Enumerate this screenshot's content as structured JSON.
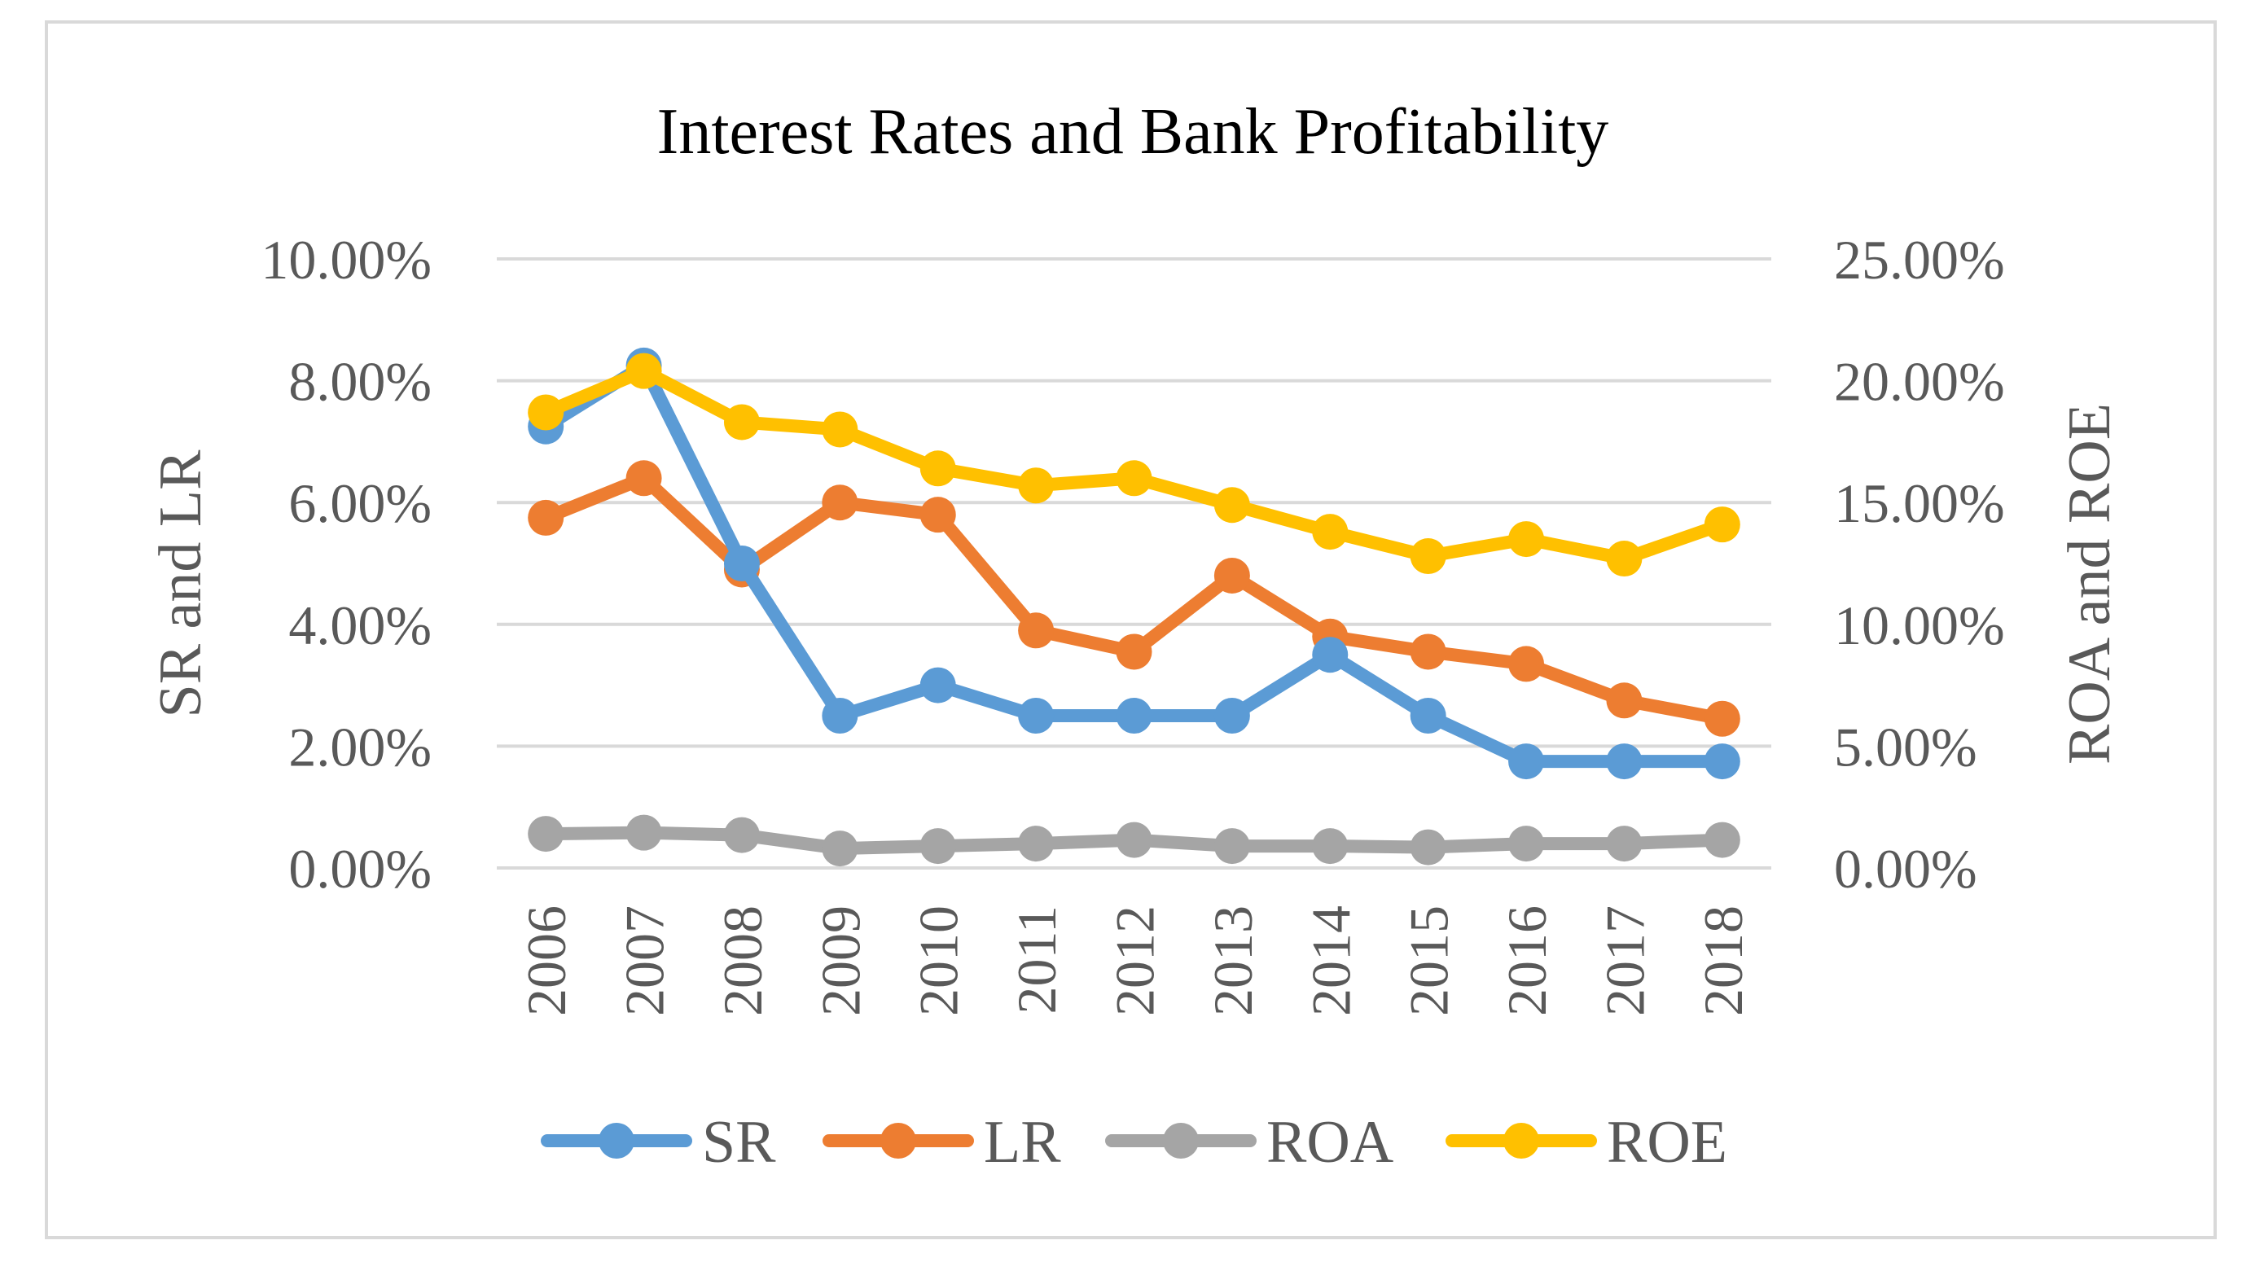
{
  "chart_data": {
    "type": "line",
    "title": "Interest Rates and Bank Profitability",
    "categories": [
      "2006",
      "2007",
      "2008",
      "2009",
      "2010",
      "2011",
      "2012",
      "2013",
      "2014",
      "2015",
      "2016",
      "2017",
      "2018"
    ],
    "left_axis": {
      "label": "SR and LR",
      "range": [
        0,
        10
      ],
      "ticks": [
        "0.00%",
        "2.00%",
        "4.00%",
        "6.00%",
        "8.00%",
        "10.00%"
      ]
    },
    "right_axis": {
      "label": "ROA and ROE",
      "range": [
        0,
        25
      ],
      "ticks": [
        "0.00%",
        "5.00%",
        "10.00%",
        "15.00%",
        "20.00%",
        "25.00%"
      ]
    },
    "grid": true,
    "legend_position": "bottom",
    "series": [
      {
        "name": "SR",
        "axis": "left",
        "color": "#5B9BD5",
        "values": [
          7.25,
          8.25,
          5.0,
          2.5,
          3.0,
          2.5,
          2.5,
          2.5,
          3.5,
          2.5,
          1.75,
          1.75,
          1.75
        ]
      },
      {
        "name": "LR",
        "axis": "left",
        "color": "#ED7D31",
        "values": [
          5.75,
          6.4,
          4.9,
          6.0,
          5.8,
          3.9,
          3.55,
          4.8,
          3.8,
          3.55,
          3.35,
          2.75,
          2.45
        ]
      },
      {
        "name": "ROA",
        "axis": "right",
        "color": "#A5A5A5",
        "values": [
          1.4,
          1.45,
          1.35,
          0.8,
          0.9,
          1.0,
          1.15,
          0.9,
          0.9,
          0.85,
          1.0,
          1.0,
          1.15
        ]
      },
      {
        "name": "ROE",
        "axis": "right",
        "color": "#FFC000",
        "values": [
          18.7,
          20.4,
          18.3,
          18.0,
          16.4,
          15.7,
          16.0,
          14.9,
          13.8,
          12.8,
          13.5,
          12.7,
          14.1
        ]
      }
    ]
  }
}
